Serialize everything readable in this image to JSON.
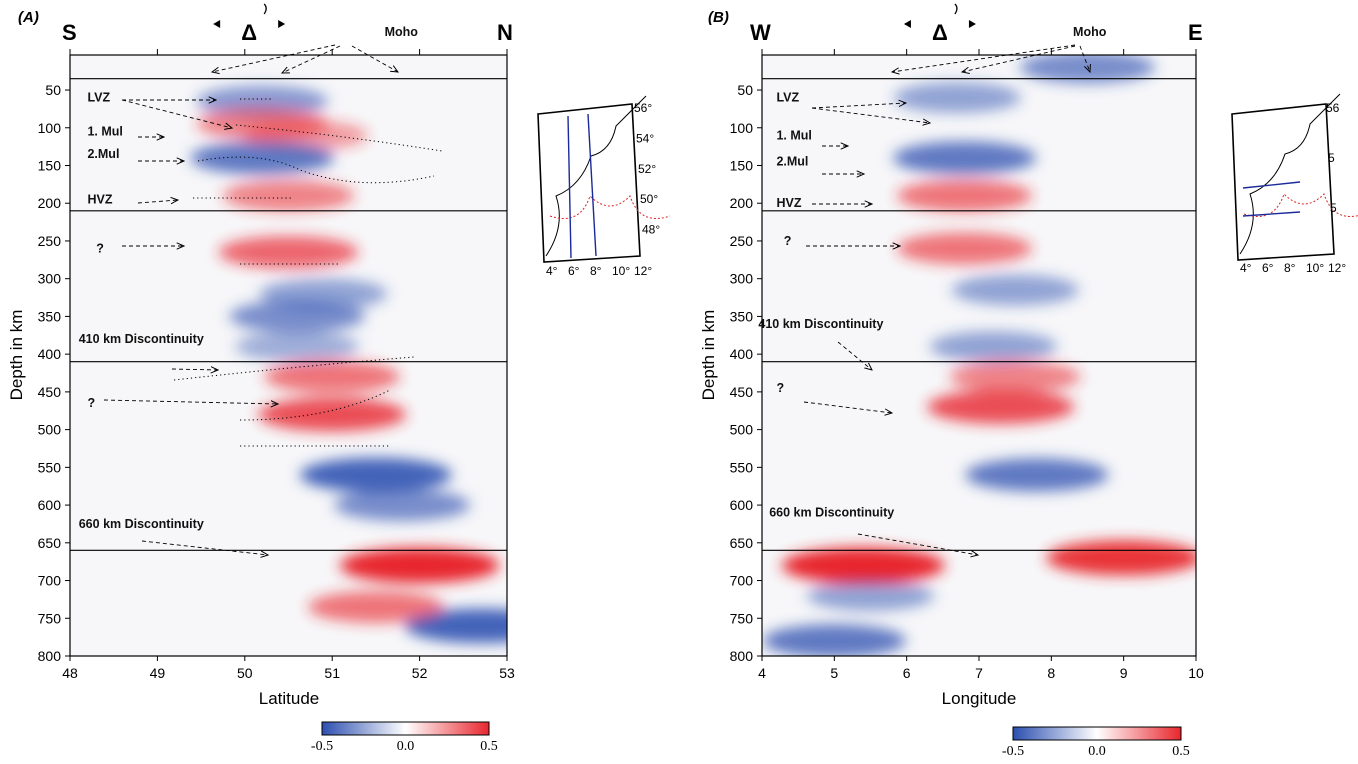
{
  "chart_data": [
    {
      "type": "heatmap",
      "panel_label": "(A)",
      "left_direction": "S",
      "right_direction": "N",
      "delta_symbol": "Δ",
      "xlabel": "Latitude",
      "ylabel": "Depth in km",
      "xlim": [
        48,
        53
      ],
      "ylim": [
        0,
        800
      ],
      "x_ticks": [
        "48",
        "49",
        "50",
        "51",
        "52",
        "53"
      ],
      "y_ticks": [
        "50",
        "100",
        "150",
        "200",
        "250",
        "300",
        "350",
        "400",
        "450",
        "500",
        "550",
        "600",
        "650",
        "700",
        "750",
        "800"
      ],
      "horizontal_lines_km": [
        35,
        210,
        410,
        660
      ],
      "annotations": [
        {
          "text": "Moho",
          "x": 51.6,
          "depth": -30
        },
        {
          "text": "LVZ",
          "x": 48.2,
          "depth": 60
        },
        {
          "text": "1. Mul",
          "x": 48.2,
          "depth": 105
        },
        {
          "text": "2.Mul",
          "x": 48.2,
          "depth": 135
        },
        {
          "text": "HVZ",
          "x": 48.2,
          "depth": 195
        },
        {
          "text": "?",
          "x": 48.3,
          "depth": 260
        },
        {
          "text": "410 km Discontinuity",
          "x": 48.1,
          "depth": 380
        },
        {
          "text": "?",
          "x": 48.2,
          "depth": 465
        },
        {
          "text": "660 km Discontinuity",
          "x": 48.1,
          "depth": 625
        }
      ],
      "anomalies": [
        {
          "x": 50.2,
          "depth": 65,
          "value": -0.45
        },
        {
          "x": 50.2,
          "depth": 95,
          "value": 0.45
        },
        {
          "x": 50.7,
          "depth": 110,
          "value": 0.35
        },
        {
          "x": 50.2,
          "depth": 140,
          "value": -0.6
        },
        {
          "x": 50.5,
          "depth": 190,
          "value": 0.45
        },
        {
          "x": 50.5,
          "depth": 265,
          "value": 0.55
        },
        {
          "x": 50.9,
          "depth": 320,
          "value": -0.4
        },
        {
          "x": 50.6,
          "depth": 350,
          "value": -0.5
        },
        {
          "x": 50.6,
          "depth": 390,
          "value": -0.35
        },
        {
          "x": 51.0,
          "depth": 430,
          "value": 0.5
        },
        {
          "x": 51.0,
          "depth": 480,
          "value": 0.65
        },
        {
          "x": 51.5,
          "depth": 560,
          "value": -0.7
        },
        {
          "x": 51.8,
          "depth": 600,
          "value": -0.5
        },
        {
          "x": 52.0,
          "depth": 680,
          "value": 0.8
        },
        {
          "x": 52.7,
          "depth": 760,
          "value": -0.7
        },
        {
          "x": 51.5,
          "depth": 735,
          "value": 0.5
        }
      ],
      "colorbar": {
        "ticks": [
          "-0.5",
          "0.0",
          "0.5"
        ],
        "colors": [
          "#2c4fb0",
          "#ffffff",
          "#e8262e"
        ]
      }
    },
    {
      "type": "heatmap",
      "panel_label": "(B)",
      "left_direction": "W",
      "right_direction": "E",
      "delta_symbol": "Δ",
      "xlabel": "Longitude",
      "ylabel": "Depth in km",
      "xlim": [
        4,
        10
      ],
      "ylim": [
        0,
        800
      ],
      "x_ticks": [
        "4",
        "5",
        "6",
        "7",
        "8",
        "9",
        "10"
      ],
      "y_ticks": [
        "50",
        "100",
        "150",
        "200",
        "250",
        "300",
        "350",
        "400",
        "450",
        "500",
        "550",
        "600",
        "650",
        "700",
        "750",
        "800"
      ],
      "horizontal_lines_km": [
        35,
        210,
        410,
        660
      ],
      "annotations": [
        {
          "text": "Moho",
          "x": 8.3,
          "depth": -30
        },
        {
          "text": "LVZ",
          "x": 4.2,
          "depth": 60
        },
        {
          "text": "1. Mul",
          "x": 4.2,
          "depth": 110
        },
        {
          "text": "2.Mul",
          "x": 4.2,
          "depth": 145
        },
        {
          "text": "HVZ",
          "x": 4.2,
          "depth": 200
        },
        {
          "text": "?",
          "x": 4.3,
          "depth": 250
        },
        {
          "text": "410 km Discontinuity",
          "x": 3.95,
          "depth": 360
        },
        {
          "text": "?",
          "x": 4.2,
          "depth": 445
        },
        {
          "text": "660 km Discontinuity",
          "x": 4.1,
          "depth": 610
        }
      ],
      "anomalies": [
        {
          "x": 8.5,
          "depth": 20,
          "value": -0.5
        },
        {
          "x": 6.7,
          "depth": 60,
          "value": -0.4
        },
        {
          "x": 6.8,
          "depth": 140,
          "value": -0.6
        },
        {
          "x": 6.8,
          "depth": 190,
          "value": 0.5
        },
        {
          "x": 6.8,
          "depth": 260,
          "value": 0.5
        },
        {
          "x": 7.5,
          "depth": 315,
          "value": -0.4
        },
        {
          "x": 7.2,
          "depth": 390,
          "value": -0.4
        },
        {
          "x": 7.5,
          "depth": 430,
          "value": 0.45
        },
        {
          "x": 7.3,
          "depth": 470,
          "value": 0.65
        },
        {
          "x": 7.8,
          "depth": 560,
          "value": -0.6
        },
        {
          "x": 5.4,
          "depth": 680,
          "value": 0.85
        },
        {
          "x": 9.0,
          "depth": 670,
          "value": 0.75
        },
        {
          "x": 5.0,
          "depth": 780,
          "value": -0.6
        },
        {
          "x": 5.5,
          "depth": 720,
          "value": -0.4
        }
      ],
      "colorbar": {
        "ticks": [
          "-0.5",
          "0.0",
          "0.5"
        ],
        "colors": [
          "#2c4fb0",
          "#ffffff",
          "#e8262e"
        ]
      }
    }
  ],
  "inset_maps": [
    {
      "lon_ticks": [
        "4°",
        "6°",
        "8°",
        "10°",
        "12°"
      ],
      "lat_ticks": [
        "56°",
        "54°",
        "52°",
        "50°",
        "48°"
      ]
    },
    {
      "lon_ticks": [
        "4°",
        "6°",
        "8°",
        "10°",
        "12°"
      ],
      "lat_ticks": [
        "56",
        "5",
        "5"
      ]
    }
  ]
}
